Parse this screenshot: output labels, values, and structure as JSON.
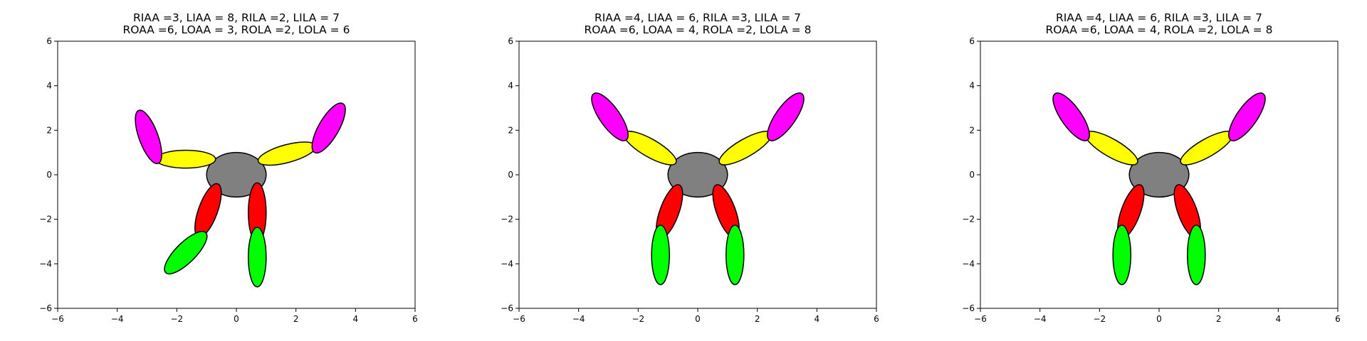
{
  "chart_data": [
    {
      "type": "scatter",
      "title_lines": [
        "RIAA =3, LIAA = 8, RILA =2, LILA = 7",
        "ROAA =6, LOAA = 3, ROLA =2, LOLA = 6"
      ],
      "xlim": [
        -6,
        6
      ],
      "ylim": [
        -6,
        6
      ],
      "xticks": [
        -6,
        -4,
        -2,
        0,
        2,
        4,
        6
      ],
      "yticks": [
        -6,
        -4,
        -2,
        0,
        2,
        4,
        6
      ],
      "xtick_labels": [
        "−6",
        "−4",
        "−2",
        "0",
        "2",
        "4",
        "6"
      ],
      "ytick_labels": [
        "−6",
        "−4",
        "−2",
        "0",
        "2",
        "4",
        "6"
      ],
      "grid": false,
      "ellipses": [
        {
          "name": "body",
          "cx": 0,
          "cy": 0,
          "w": 2.0,
          "h": 2.0,
          "angle": 0,
          "color": "#808080"
        },
        {
          "name": "right-inner-arm",
          "cx": 1.7,
          "cy": 0.95,
          "w": 2.0,
          "h": 0.8,
          "angle": 15,
          "color": "#ffff00"
        },
        {
          "name": "right-outer-arm",
          "cx": 3.1,
          "cy": 2.1,
          "w": 1.9,
          "h": 0.9,
          "angle": 60,
          "color": "#ff00ff"
        },
        {
          "name": "left-inner-arm",
          "cx": -1.7,
          "cy": 0.7,
          "w": 2.0,
          "h": 0.8,
          "angle": 0,
          "color": "#ffff00"
        },
        {
          "name": "left-outer-arm",
          "cx": -2.95,
          "cy": 1.7,
          "w": 1.9,
          "h": 0.85,
          "angle": -70,
          "color": "#ff00ff"
        },
        {
          "name": "right-inner-leg",
          "cx": 0.7,
          "cy": -1.7,
          "w": 2.0,
          "h": 0.8,
          "angle": 90,
          "color": "#ff0000"
        },
        {
          "name": "right-outer-leg",
          "cx": 0.7,
          "cy": -3.7,
          "w": 2.0,
          "h": 0.8,
          "angle": 90,
          "color": "#00ff00"
        },
        {
          "name": "left-inner-leg",
          "cx": -0.95,
          "cy": -1.6,
          "w": 1.9,
          "h": 0.85,
          "angle": 70,
          "color": "#ff0000"
        },
        {
          "name": "left-outer-leg",
          "cx": -1.7,
          "cy": -3.5,
          "w": 1.9,
          "h": 0.9,
          "angle": 45,
          "color": "#00ff00"
        }
      ]
    },
    {
      "type": "scatter",
      "title_lines": [
        "RIAA =4, LIAA = 6, RILA =3, LILA = 7",
        "ROAA =6, LOAA = 4, ROLA =2, LOLA = 8"
      ],
      "xlim": [
        -6,
        6
      ],
      "ylim": [
        -6,
        6
      ],
      "xticks": [
        -6,
        -4,
        -2,
        0,
        2,
        4,
        6
      ],
      "yticks": [
        -6,
        -4,
        -2,
        0,
        2,
        4,
        6
      ],
      "xtick_labels": [
        "−6",
        "−4",
        "−2",
        "0",
        "2",
        "4",
        "6"
      ],
      "ytick_labels": [
        "−6",
        "−4",
        "−2",
        "0",
        "2",
        "4",
        "6"
      ],
      "grid": false,
      "ellipses": [
        {
          "name": "body",
          "cx": 0,
          "cy": 0,
          "w": 2.0,
          "h": 2.0,
          "angle": 0,
          "color": "#808080"
        },
        {
          "name": "right-inner-arm",
          "cx": 1.6,
          "cy": 1.2,
          "w": 2.0,
          "h": 0.8,
          "angle": 30,
          "color": "#ffff00"
        },
        {
          "name": "right-outer-arm",
          "cx": 2.95,
          "cy": 2.6,
          "w": 1.9,
          "h": 0.9,
          "angle": 55,
          "color": "#ff00ff"
        },
        {
          "name": "left-inner-arm",
          "cx": -1.6,
          "cy": 1.2,
          "w": 2.0,
          "h": 0.8,
          "angle": -30,
          "color": "#ffff00"
        },
        {
          "name": "left-outer-arm",
          "cx": -2.95,
          "cy": 2.6,
          "w": 1.9,
          "h": 0.9,
          "angle": -55,
          "color": "#ff00ff"
        },
        {
          "name": "right-inner-leg",
          "cx": 0.95,
          "cy": -1.65,
          "w": 1.9,
          "h": 0.85,
          "angle": -70,
          "color": "#ff0000"
        },
        {
          "name": "right-outer-leg",
          "cx": 1.25,
          "cy": -3.6,
          "w": 2.0,
          "h": 0.8,
          "angle": 90,
          "color": "#00ff00"
        },
        {
          "name": "left-inner-leg",
          "cx": -0.95,
          "cy": -1.65,
          "w": 1.9,
          "h": 0.85,
          "angle": 70,
          "color": "#ff0000"
        },
        {
          "name": "left-outer-leg",
          "cx": -1.25,
          "cy": -3.6,
          "w": 2.0,
          "h": 0.8,
          "angle": 90,
          "color": "#00ff00"
        }
      ]
    },
    {
      "type": "scatter",
      "title_lines": [
        "RIAA =4, LIAA = 6, RILA =3, LILA = 7",
        "ROAA =6, LOAA = 4, ROLA =2, LOLA = 8"
      ],
      "xlim": [
        -6,
        6
      ],
      "ylim": [
        -6,
        6
      ],
      "xticks": [
        -6,
        -4,
        -2,
        0,
        2,
        4,
        6
      ],
      "yticks": [
        -6,
        -4,
        -2,
        0,
        2,
        4,
        6
      ],
      "xtick_labels": [
        "−6",
        "−4",
        "−2",
        "0",
        "2",
        "4",
        "6"
      ],
      "ytick_labels": [
        "−6",
        "−4",
        "−2",
        "0",
        "2",
        "4",
        "6"
      ],
      "grid": false,
      "ellipses": [
        {
          "name": "body",
          "cx": 0,
          "cy": 0,
          "w": 2.0,
          "h": 2.0,
          "angle": 0,
          "color": "#808080"
        },
        {
          "name": "right-inner-arm",
          "cx": 1.6,
          "cy": 1.2,
          "w": 2.0,
          "h": 0.8,
          "angle": 30,
          "color": "#ffff00"
        },
        {
          "name": "right-outer-arm",
          "cx": 2.95,
          "cy": 2.6,
          "w": 1.9,
          "h": 0.9,
          "angle": 55,
          "color": "#ff00ff"
        },
        {
          "name": "left-inner-arm",
          "cx": -1.6,
          "cy": 1.2,
          "w": 2.0,
          "h": 0.8,
          "angle": -30,
          "color": "#ffff00"
        },
        {
          "name": "left-outer-arm",
          "cx": -2.95,
          "cy": 2.6,
          "w": 1.9,
          "h": 0.9,
          "angle": -55,
          "color": "#ff00ff"
        },
        {
          "name": "right-inner-leg",
          "cx": 0.95,
          "cy": -1.65,
          "w": 1.9,
          "h": 0.85,
          "angle": -70,
          "color": "#ff0000"
        },
        {
          "name": "right-outer-leg",
          "cx": 1.25,
          "cy": -3.6,
          "w": 2.0,
          "h": 0.8,
          "angle": 90,
          "color": "#00ff00"
        },
        {
          "name": "left-inner-leg",
          "cx": -0.95,
          "cy": -1.65,
          "w": 1.9,
          "h": 0.85,
          "angle": 70,
          "color": "#ff0000"
        },
        {
          "name": "left-outer-leg",
          "cx": -1.25,
          "cy": -3.6,
          "w": 2.0,
          "h": 0.8,
          "angle": 90,
          "color": "#00ff00"
        }
      ]
    }
  ]
}
